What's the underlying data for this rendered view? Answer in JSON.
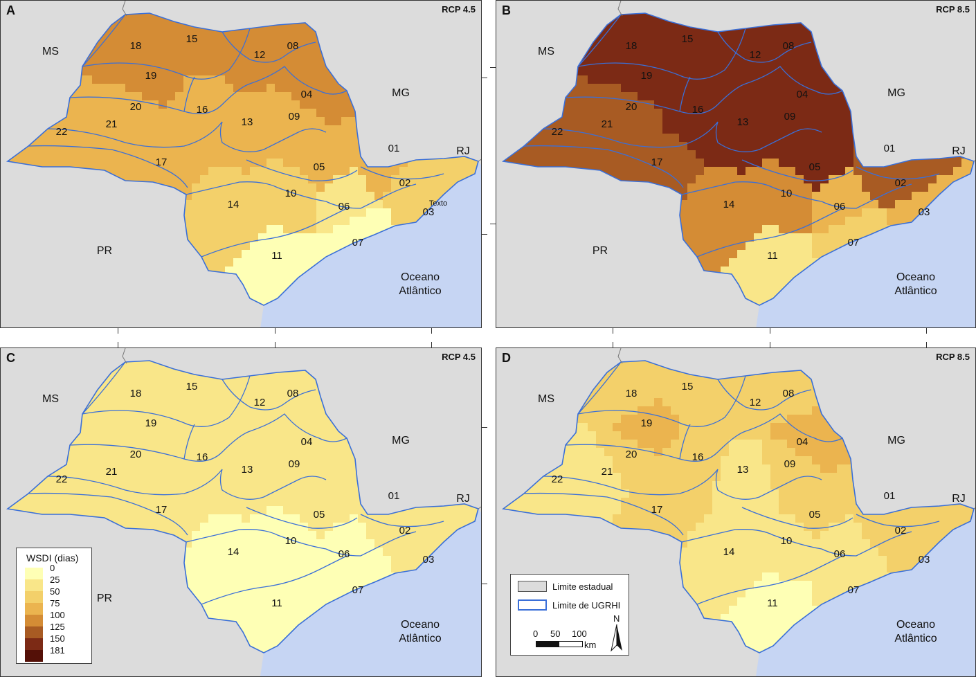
{
  "legend": {
    "title": "WSDI (dias)",
    "breaks": [
      "0",
      "25",
      "50",
      "75",
      "100",
      "125",
      "150",
      "181"
    ],
    "colors": [
      "#feffb5",
      "#f9e689",
      "#f3d06a",
      "#ebb44f",
      "#d48c35",
      "#a85b23",
      "#7c2a15",
      "#541007"
    ]
  },
  "base_legend": {
    "state_limit": "Limite estadual",
    "ugrhi_limit": "Limite de UGRHI",
    "north": "N",
    "scale_ticks": [
      "0",
      "50",
      "100"
    ],
    "scale_unit": "km"
  },
  "ocean_color": "#c6d5f3",
  "land_color": "#dcdcdc",
  "boundary_color": "#3a6fd8",
  "panels": [
    {
      "letter": "A",
      "scenario": "RCP 4.5",
      "labels": {
        "ms": "MS",
        "mg": "MG",
        "rj": "RJ",
        "pr": "PR",
        "ocean1": "Oceano",
        "ocean2": "Atlântico",
        "extra": "Texto"
      },
      "ugrhi": {
        "01": "01",
        "02": "02",
        "03": "03",
        "04": "04",
        "05": "05",
        "06": "06",
        "07": "07",
        "08": "08",
        "09": "09",
        "10": "10",
        "11": "11",
        "12": "12",
        "13": "13",
        "14": "14",
        "15": "15",
        "16": "16",
        "17": "17",
        "18": "18",
        "19": "19",
        "20": "20",
        "21": "21",
        "22": "22"
      },
      "wsdi_by_ugrhi": {
        "01": 80,
        "02": 70,
        "03": 55,
        "04": 110,
        "05": 85,
        "06": 45,
        "07": 20,
        "08": 115,
        "09": 95,
        "10": 60,
        "11": 15,
        "12": 115,
        "13": 80,
        "14": 55,
        "15": 120,
        "16": 90,
        "17": 80,
        "18": 100,
        "19": 100,
        "20": 85,
        "21": 80,
        "22": 80
      }
    },
    {
      "letter": "B",
      "scenario": "RCP 8.5",
      "labels": {
        "ms": "MS",
        "mg": "MG",
        "rj": "RJ",
        "pr": "PR",
        "ocean1": "Oceano",
        "ocean2": "Atlântico"
      },
      "ugrhi": {
        "01": "01",
        "02": "02",
        "03": "03",
        "04": "04",
        "05": "05",
        "06": "06",
        "07": "07",
        "08": "08",
        "09": "09",
        "10": "10",
        "11": "11",
        "12": "12",
        "13": "13",
        "14": "14",
        "15": "15",
        "16": "16",
        "17": "17",
        "18": "18",
        "19": "19",
        "20": "20",
        "21": "21",
        "22": "22"
      },
      "wsdi_by_ugrhi": {
        "01": 140,
        "02": 130,
        "03": 90,
        "04": 165,
        "05": 150,
        "06": 95,
        "07": 50,
        "08": 165,
        "09": 165,
        "10": 120,
        "11": 40,
        "12": 165,
        "13": 165,
        "14": 110,
        "15": 165,
        "16": 150,
        "17": 135,
        "18": 165,
        "19": 160,
        "20": 135,
        "21": 135,
        "22": 135
      }
    },
    {
      "letter": "C",
      "scenario": "RCP 4.5",
      "labels": {
        "ms": "MS",
        "mg": "MG",
        "rj": "RJ",
        "pr": "PR",
        "ocean1": "Oceano",
        "ocean2": "Atlântico"
      },
      "ugrhi": {
        "01": "01",
        "02": "02",
        "03": "03",
        "04": "04",
        "05": "05",
        "06": "06",
        "07": "07",
        "08": "08",
        "09": "09",
        "10": "10",
        "11": "11",
        "12": "12",
        "13": "13",
        "14": "14",
        "15": "15",
        "16": "16",
        "17": "17",
        "18": "18",
        "19": "19",
        "20": "20",
        "21": "21",
        "22": "22"
      },
      "wsdi_by_ugrhi": {
        "01": 45,
        "02": 30,
        "03": 35,
        "04": 40,
        "05": 45,
        "06": 20,
        "07": 15,
        "08": 40,
        "09": 40,
        "10": 20,
        "11": 15,
        "12": 40,
        "13": 35,
        "14": 15,
        "15": 40,
        "16": 35,
        "17": 30,
        "18": 35,
        "19": 35,
        "20": 35,
        "21": 30,
        "22": 30
      }
    },
    {
      "letter": "D",
      "scenario": "RCP 8.5",
      "labels": {
        "ms": "MS",
        "mg": "MG",
        "rj": "RJ",
        "pr": "PR",
        "ocean1": "Oceano",
        "ocean2": "Atlântico"
      },
      "ugrhi": {
        "01": "01",
        "02": "02",
        "03": "03",
        "04": "04",
        "05": "05",
        "06": "06",
        "07": "07",
        "08": "08",
        "09": "09",
        "10": "10",
        "11": "11",
        "12": "12",
        "13": "13",
        "14": "14",
        "15": "15",
        "16": "16",
        "17": "17",
        "18": "18",
        "19": "19",
        "20": "20",
        "21": "21",
        "22": "22"
      },
      "wsdi_by_ugrhi": {
        "01": 55,
        "02": 50,
        "03": 70,
        "04": 80,
        "05": 60,
        "06": 35,
        "07": 25,
        "08": 65,
        "09": 70,
        "10": 45,
        "11": 20,
        "12": 60,
        "13": 45,
        "14": 30,
        "15": 60,
        "16": 50,
        "17": 50,
        "18": 70,
        "19": 75,
        "20": 50,
        "21": 45,
        "22": 45
      }
    }
  ]
}
